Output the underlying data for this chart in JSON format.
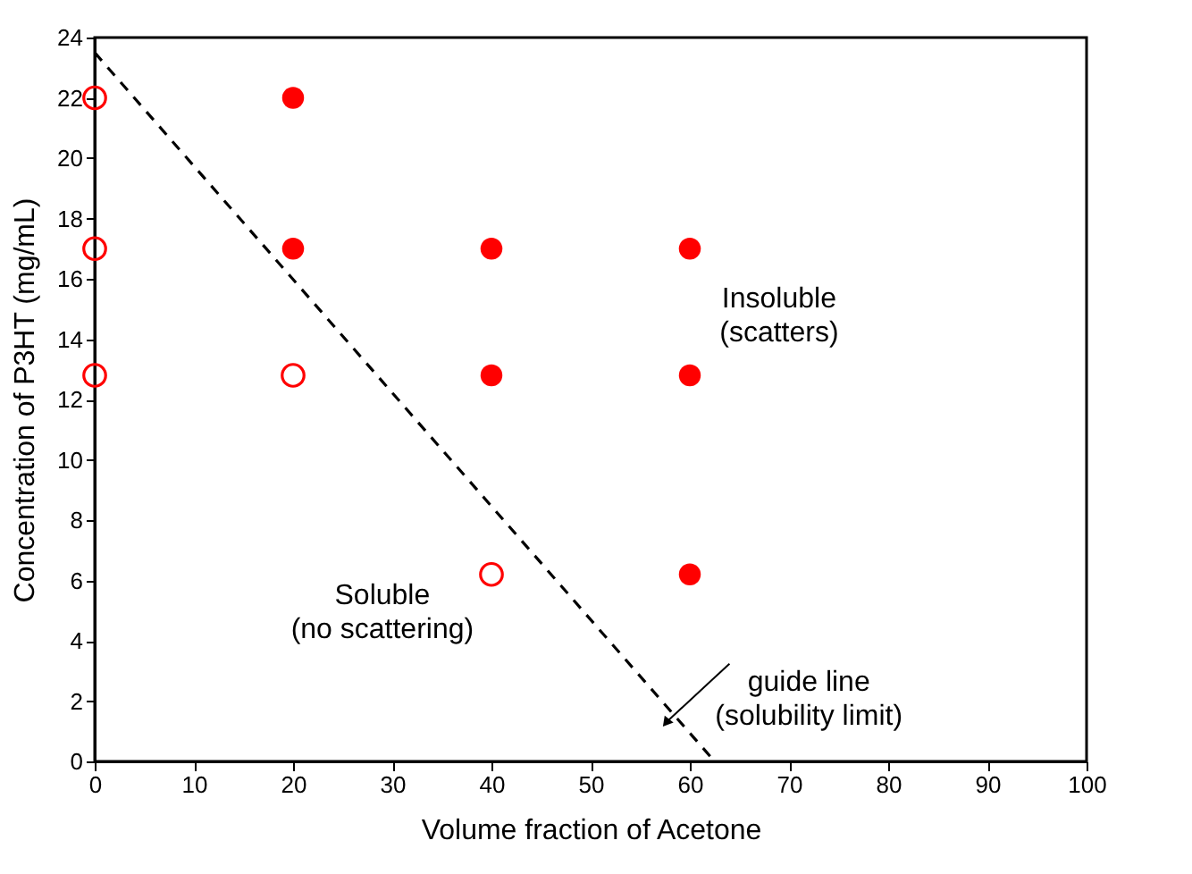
{
  "chart_data": {
    "type": "scatter",
    "xlabel": "Volume fraction of Acetone",
    "ylabel": "Concentration of P3HT (mg/mL)",
    "xlim": [
      0,
      100
    ],
    "xticks": [
      0,
      10,
      20,
      30,
      40,
      50,
      60,
      70,
      80,
      90,
      100
    ],
    "ylim": [
      0,
      24
    ],
    "yticks": [
      0,
      2,
      4,
      6,
      8,
      10,
      12,
      14,
      16,
      18,
      20,
      22,
      24
    ],
    "grid": false,
    "marker": "circle",
    "series": [
      {
        "color": "#ff0000",
        "x": [
          0,
          0,
          0,
          20,
          40
        ],
        "values": [
          22,
          17,
          12.8,
          12.8,
          6.2
        ]
      },
      {
        "color": "#ff0000",
        "x": [
          20,
          20,
          40,
          60,
          40,
          60,
          60
        ],
        "values": [
          22,
          17,
          17,
          17,
          12.8,
          12.8,
          6.2
        ]
      },
      {
        "type": "line",
        "color": "#000000",
        "line_style": "dashed",
        "marker": "none",
        "x": [
          0,
          62.5
        ],
        "values": [
          23.5,
          0
        ]
      }
    ],
    "annotations": [
      "Insoluble\n(scatters)",
      "Soluble\n(no scattering)",
      "guide line\n(solubility limit)"
    ]
  }
}
